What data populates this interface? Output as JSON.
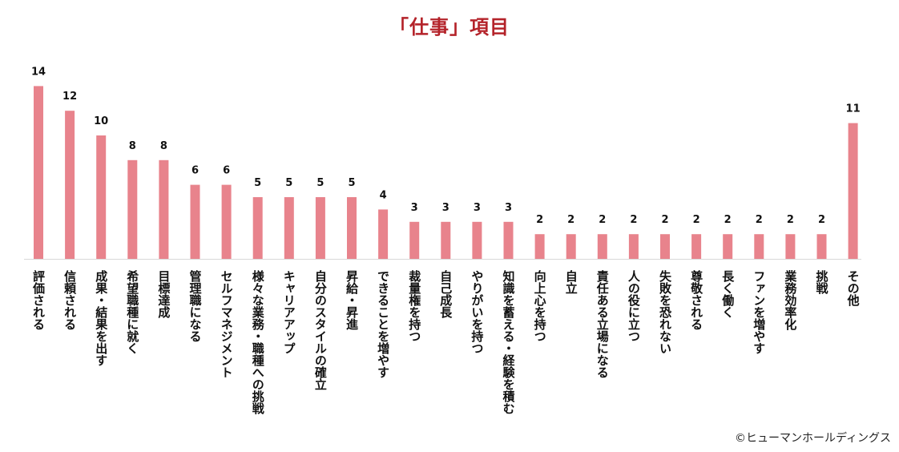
{
  "chart_data": {
    "type": "bar",
    "title": "「仕事」項目",
    "xlabel": "",
    "ylabel": "",
    "ylim": [
      0,
      14
    ],
    "grid": false,
    "bar_color": "#e8838c",
    "title_color": "#b4232a",
    "categories": [
      "評価される",
      "信頼される",
      "成果・結果を出す",
      "希望職種に就く",
      "目標達成",
      "管理職になる",
      "セルフマネジメント",
      "様々な業務・職種への挑戦",
      "キャリアアップ",
      "自分のスタイルの確立",
      "昇給・昇進",
      "できることを増やす",
      "裁量権を持つ",
      "自己成長",
      "やりがいを持つ",
      "知識を蓄える・経験を積む",
      "向上心を持つ",
      "自立",
      "責任ある立場になる",
      "人の役に立つ",
      "失敗を恐れない",
      "尊敬される",
      "長く働く",
      "ファンを増やす",
      "業務効率化",
      "挑戦",
      "その他"
    ],
    "values": [
      14,
      12,
      10,
      8,
      8,
      6,
      6,
      5,
      5,
      5,
      5,
      4,
      3,
      3,
      3,
      3,
      2,
      2,
      2,
      2,
      2,
      2,
      2,
      2,
      2,
      2,
      11
    ]
  },
  "credit": "©ヒューマンホールディングス"
}
